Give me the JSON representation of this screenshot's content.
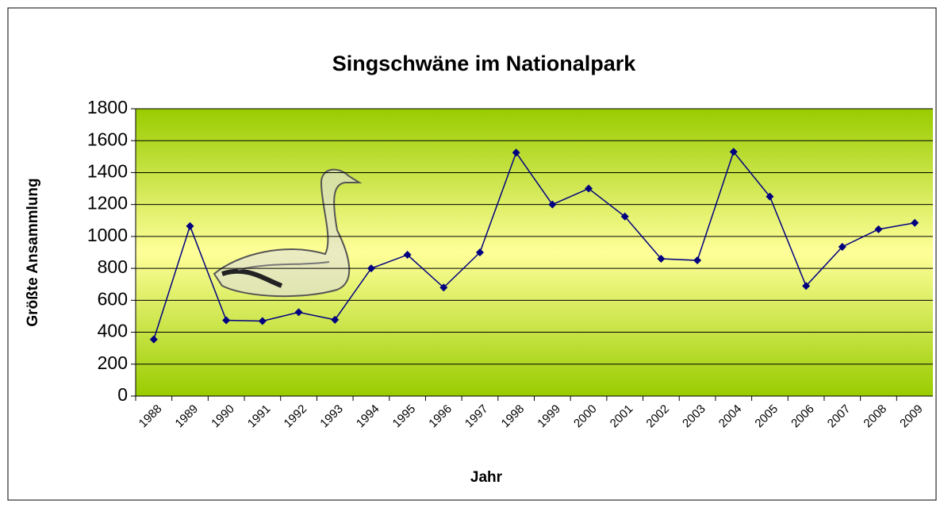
{
  "chart_data": {
    "type": "line",
    "title": "Singschwäne im Nationalpark",
    "x_label": "Jahr",
    "y_label": "Größte Ansammlung",
    "categories": [
      "1988",
      "1989",
      "1990",
      "1991",
      "1992",
      "1993",
      "1994",
      "1995",
      "1996",
      "1997",
      "1998",
      "1999",
      "2000",
      "2001",
      "2002",
      "2003",
      "2004",
      "2005",
      "2006",
      "2007",
      "2008",
      "2009"
    ],
    "values": [
      355,
      1065,
      475,
      470,
      525,
      478,
      800,
      885,
      680,
      900,
      1525,
      1200,
      1300,
      1125,
      860,
      850,
      1530,
      1250,
      690,
      935,
      1045,
      1085
    ],
    "color": "#000080",
    "ylim": [
      0,
      1800
    ],
    "yticks": [
      0,
      200,
      400,
      600,
      800,
      1000,
      1200,
      1400,
      1600,
      1800
    ],
    "grid": true
  }
}
